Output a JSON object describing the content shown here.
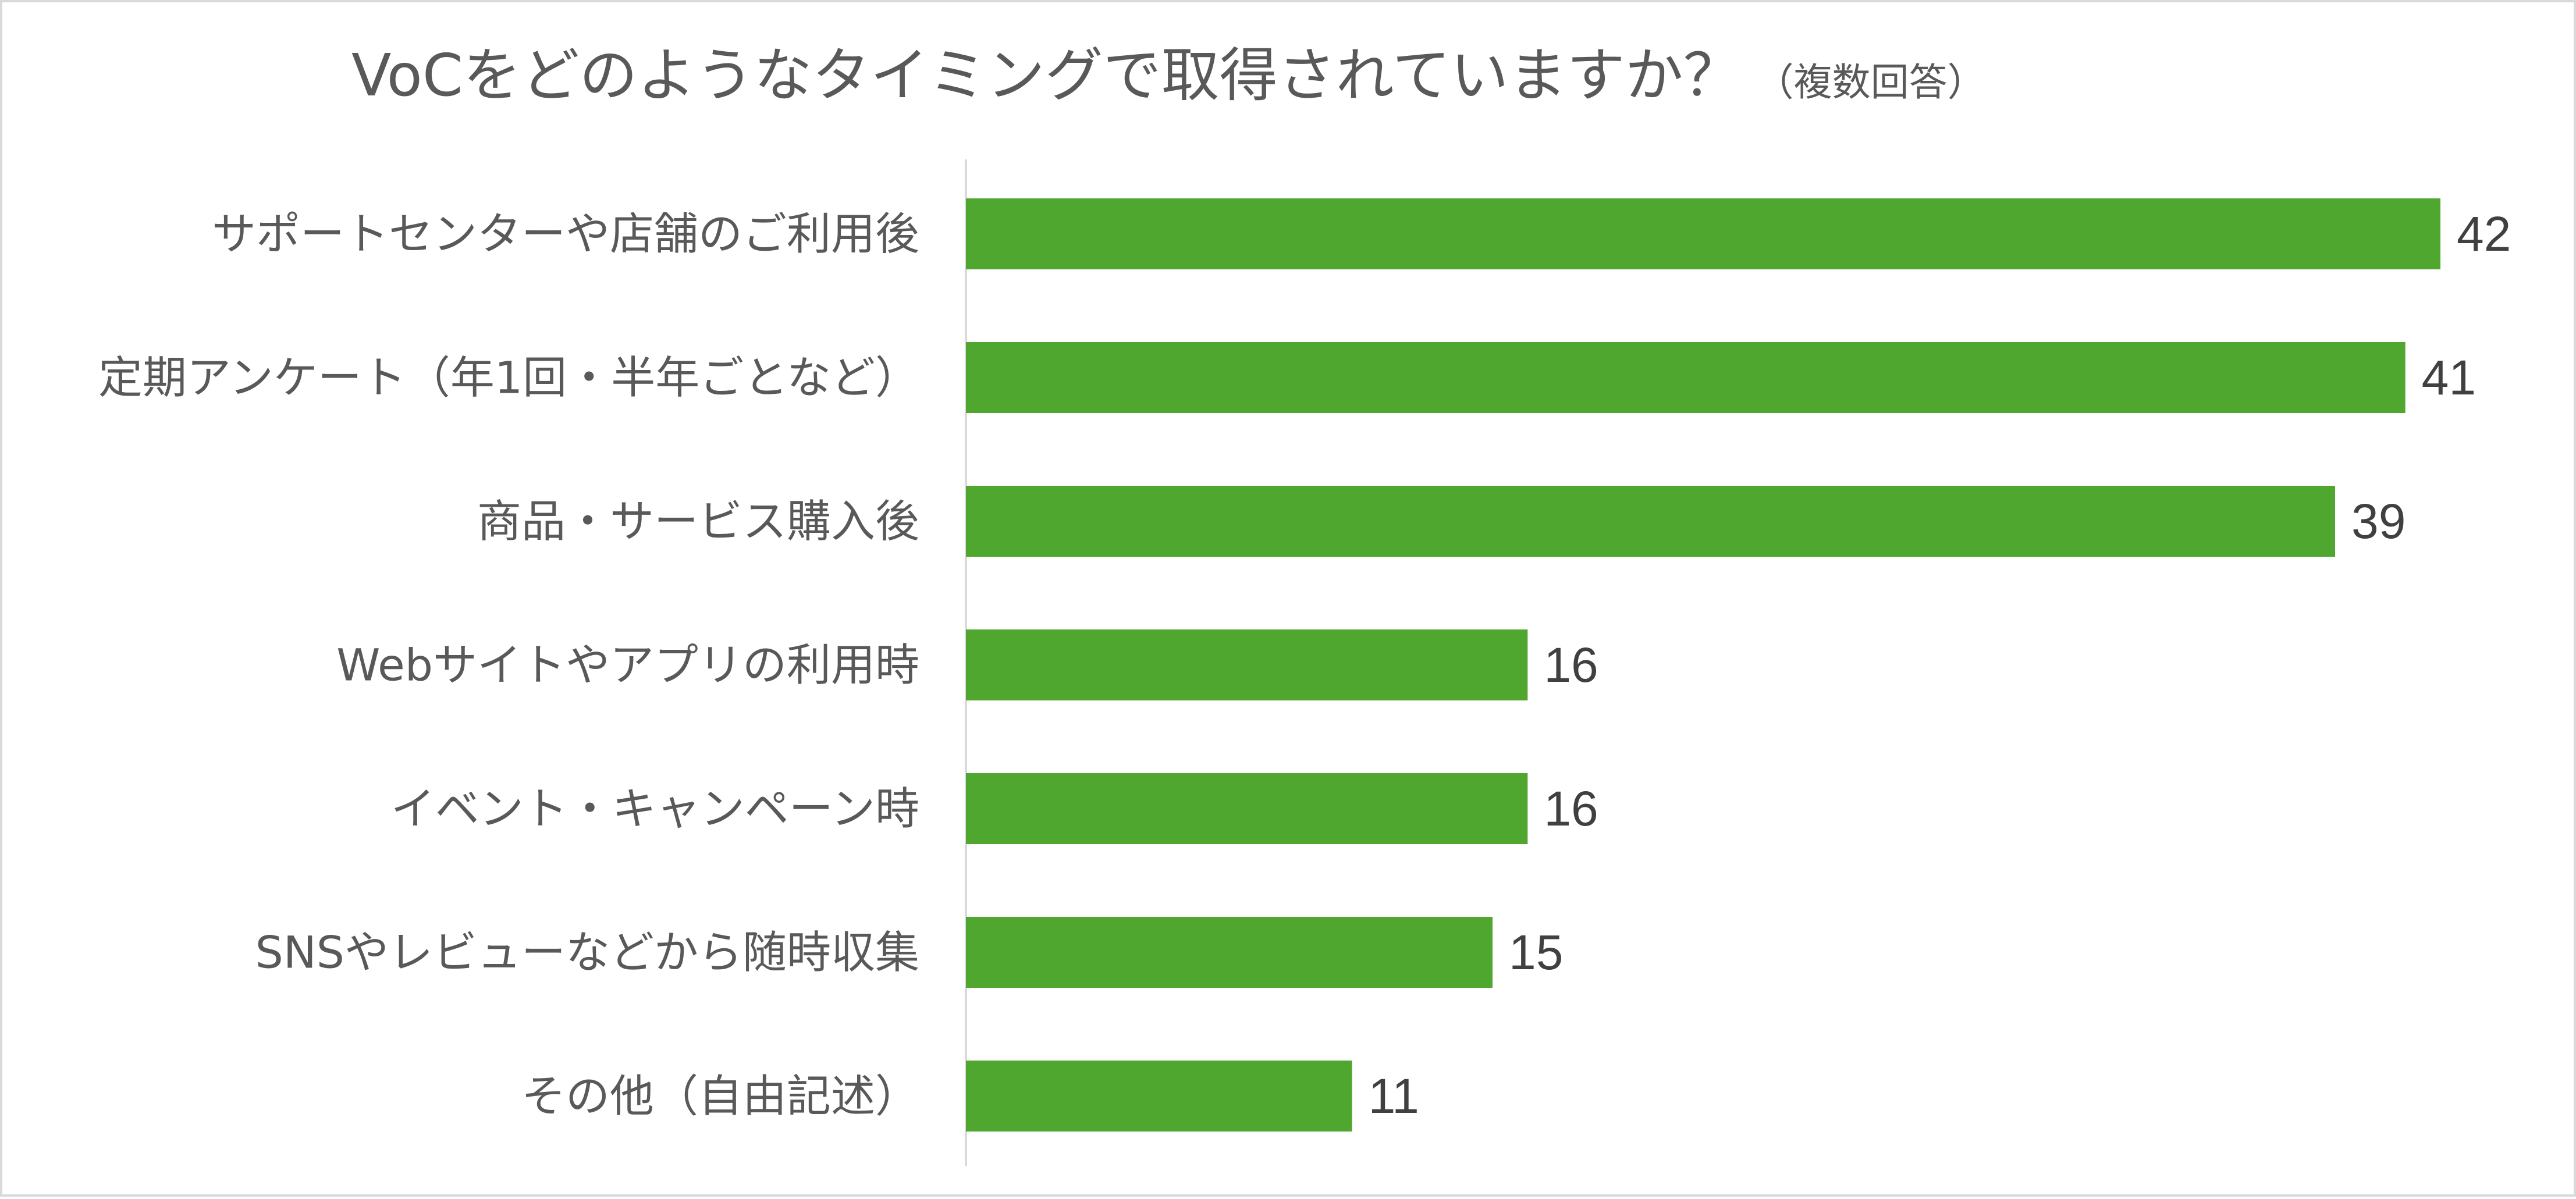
{
  "chart_data": {
    "type": "bar",
    "orientation": "horizontal",
    "title": "VoCをどのようなタイミングで取得されていますか？",
    "subtitle": "（複数回答）",
    "categories": [
      "サポートセンターや店舗のご利用後",
      "定期アンケート（年1回・半年ごとなど）",
      "商品・サービス購入後",
      "Webサイトやアプリの利用時",
      "イベント・キャンペーン時",
      "SNSやレビューなどから随時収集",
      "その他（自由記述）"
    ],
    "values": [
      42,
      41,
      39,
      16,
      16,
      15,
      11
    ],
    "xlim": [
      0,
      42
    ],
    "grid": false,
    "legend": "none",
    "colors": {
      "bar": "#4fa72f",
      "axis": "#d9d9d9",
      "text": "#595959",
      "value_text": "#404040"
    }
  }
}
